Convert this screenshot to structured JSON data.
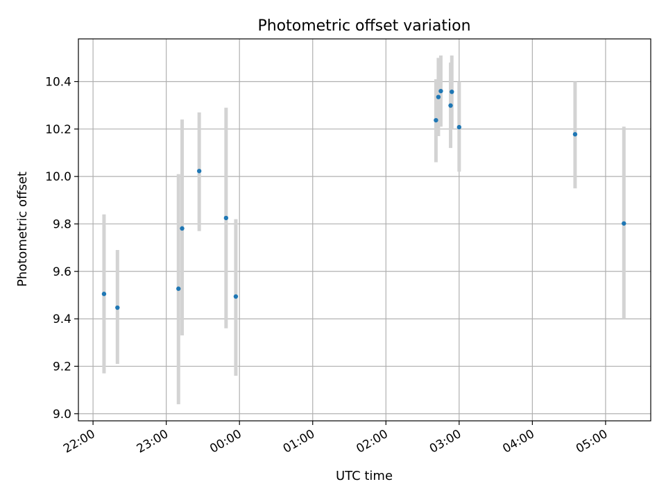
{
  "chart_data": {
    "type": "scatter",
    "title": "Photometric offset variation",
    "xlabel": "UTC time",
    "ylabel": "Photometric offset",
    "x_axis_kind": "time",
    "xlim": [
      "21:48",
      "05:37"
    ],
    "ylim": [
      8.97,
      10.58
    ],
    "x_ticks": [
      "22:00",
      "23:00",
      "00:00",
      "01:00",
      "02:00",
      "03:00",
      "04:00",
      "05:00"
    ],
    "y_ticks": [
      "9.0",
      "9.2",
      "9.4",
      "9.6",
      "9.8",
      "10.0",
      "10.2",
      "10.4"
    ],
    "grid": true,
    "point_color": "#1f77b4",
    "errorbar_color": "#d3d3d3",
    "points": [
      {
        "x": "22:09",
        "y": 9.505,
        "ymin": 9.17,
        "ymax": 9.84
      },
      {
        "x": "22:20",
        "y": 9.447,
        "ymin": 9.21,
        "ymax": 9.69
      },
      {
        "x": "23:10",
        "y": 9.527,
        "ymin": 9.04,
        "ymax": 10.01
      },
      {
        "x": "23:13",
        "y": 9.781,
        "ymin": 9.33,
        "ymax": 10.24
      },
      {
        "x": "23:27",
        "y": 10.023,
        "ymin": 9.77,
        "ymax": 10.27
      },
      {
        "x": "23:49",
        "y": 9.825,
        "ymin": 9.36,
        "ymax": 10.29
      },
      {
        "x": "23:57",
        "y": 9.494,
        "ymin": 9.16,
        "ymax": 9.82
      },
      {
        "x": "02:41",
        "y": 10.237,
        "ymin": 10.06,
        "ymax": 10.41
      },
      {
        "x": "02:43",
        "y": 10.335,
        "ymin": 10.17,
        "ymax": 10.5
      },
      {
        "x": "02:45",
        "y": 10.36,
        "ymin": 10.21,
        "ymax": 10.51
      },
      {
        "x": "02:53",
        "y": 10.299,
        "ymin": 10.12,
        "ymax": 10.48
      },
      {
        "x": "02:54",
        "y": 10.357,
        "ymin": 10.2,
        "ymax": 10.51
      },
      {
        "x": "03:00",
        "y": 10.208,
        "ymin": 10.02,
        "ymax": 10.4
      },
      {
        "x": "04:35",
        "y": 10.178,
        "ymin": 9.95,
        "ymax": 10.4
      },
      {
        "x": "05:15",
        "y": 9.802,
        "ymin": 9.4,
        "ymax": 10.21
      }
    ]
  }
}
